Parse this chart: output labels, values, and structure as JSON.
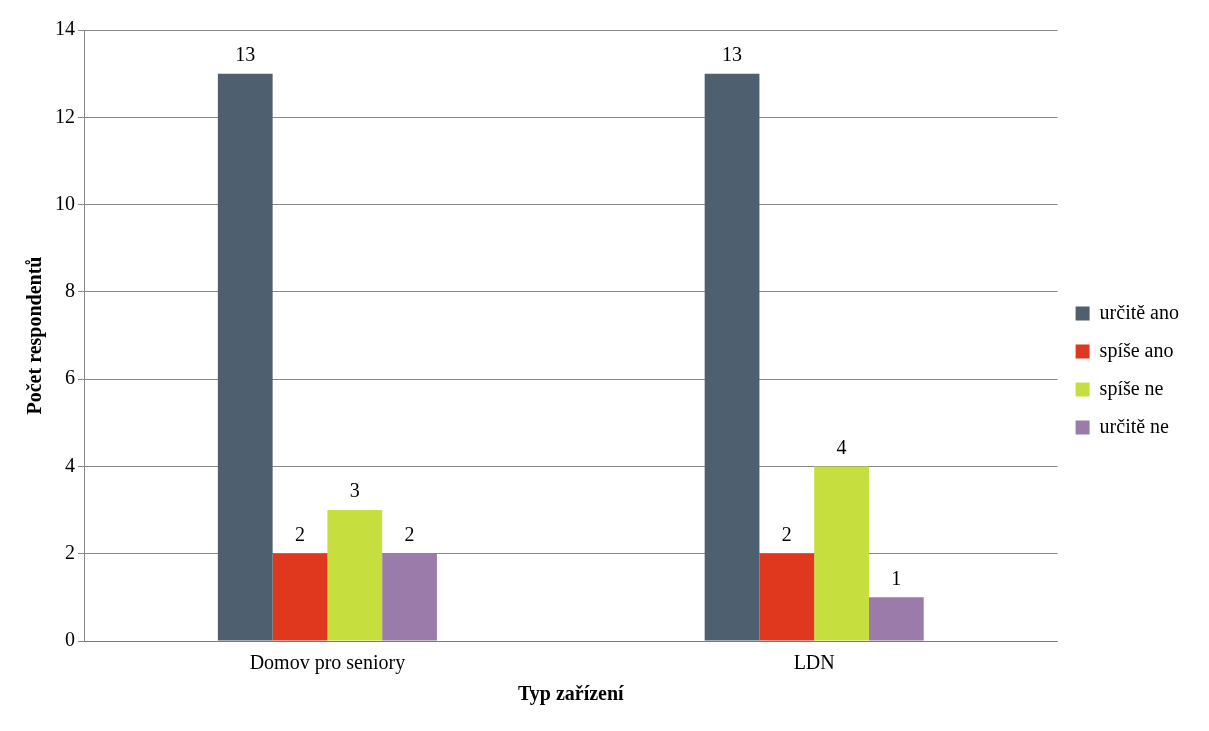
{
  "chart_data": {
    "type": "bar",
    "xlabel": "Typ zařízení",
    "ylabel": "Počet respondentů",
    "categories": [
      "Domov pro seniory",
      "LDN"
    ],
    "series": [
      {
        "name": "určitě ano",
        "color": "#4e5f6f",
        "values": [
          13,
          13
        ]
      },
      {
        "name": "spíše ano",
        "color": "#e0371f",
        "values": [
          2,
          2
        ]
      },
      {
        "name": "spíše ne",
        "color": "#c6df3e",
        "values": [
          3,
          4
        ]
      },
      {
        "name": "určitě ne",
        "color": "#9b7ba9",
        "values": [
          2,
          1
        ]
      }
    ],
    "ylim": [
      0,
      14
    ],
    "yticks": [
      0,
      2,
      4,
      6,
      8,
      10,
      12,
      14
    ],
    "grid": "y",
    "legend": "right",
    "data_labels": true
  }
}
